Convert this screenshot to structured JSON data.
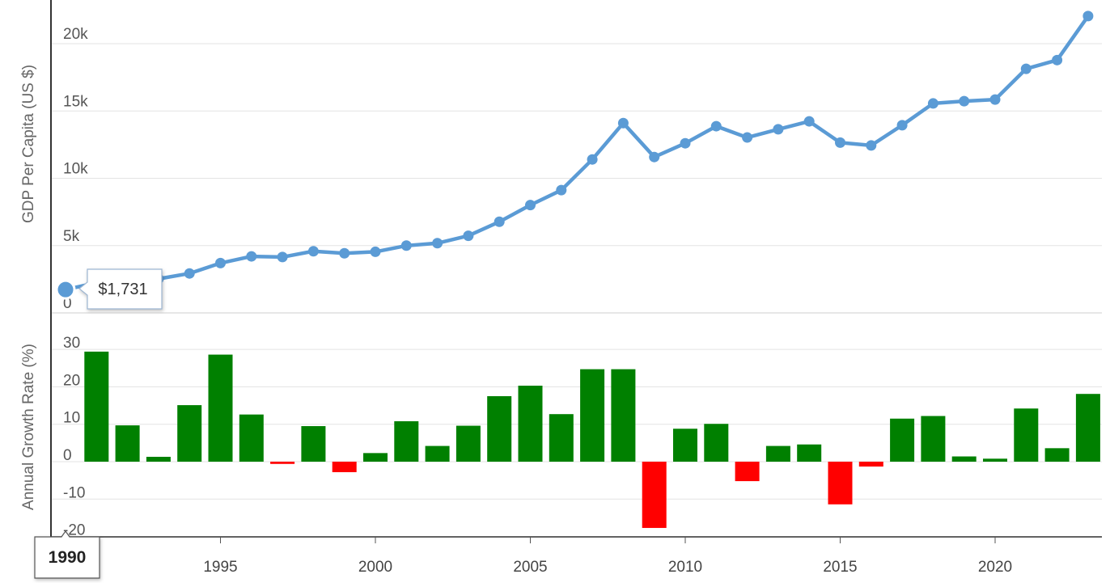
{
  "chart_data": [
    {
      "type": "line",
      "ylabel": "GDP Per Capita (US $)",
      "y_tick_labels": [
        "0",
        "5k",
        "10k",
        "15k",
        "20k"
      ],
      "y_ticks": [
        0,
        5000,
        10000,
        15000,
        20000
      ],
      "ylim": [
        0,
        23000
      ],
      "xlim": [
        1990,
        2023
      ],
      "x_tick_labels": [
        "1995",
        "2000",
        "2005",
        "2010",
        "2015",
        "2020"
      ],
      "x_ticks": [
        1995,
        2000,
        2005,
        2010,
        2015,
        2020
      ],
      "grid": true,
      "series": [
        {
          "color": "#5b9bd5",
          "x": [
            1990,
            1991,
            1992,
            1993,
            1994,
            1995,
            1996,
            1997,
            1998,
            1999,
            2000,
            2001,
            2002,
            2003,
            2004,
            2005,
            2006,
            2007,
            2008,
            2009,
            2010,
            2011,
            2012,
            2013,
            2014,
            2015,
            2016,
            2017,
            2018,
            2019,
            2020,
            2021,
            2022,
            2023
          ],
          "values": [
            1731,
            2240,
            2450,
            2530,
            2930,
            3700,
            4200,
            4150,
            4580,
            4430,
            4540,
            5000,
            5180,
            5730,
            6770,
            8010,
            9120,
            11400,
            14100,
            11580,
            12600,
            13870,
            13030,
            13640,
            14230,
            12650,
            12440,
            13940,
            15560,
            15730,
            15850,
            18130,
            18780,
            22050
          ]
        }
      ],
      "tooltip": {
        "year": "1990",
        "value_label": "$1,731"
      }
    },
    {
      "type": "bar",
      "ylabel": "Annual Growth Rate (%)",
      "y_tick_labels": [
        "30",
        "20",
        "10",
        "0",
        "-10",
        "-20"
      ],
      "y_ticks": [
        30,
        20,
        10,
        0,
        -10,
        -20
      ],
      "ylim": [
        -20,
        33
      ],
      "grid": true,
      "colors": {
        "positive": "#008000",
        "negative": "#ff0000"
      },
      "x": [
        1991,
        1992,
        1993,
        1994,
        1995,
        1996,
        1997,
        1998,
        1999,
        2000,
        2001,
        2002,
        2003,
        2004,
        2005,
        2006,
        2007,
        2008,
        2009,
        2010,
        2011,
        2012,
        2013,
        2014,
        2015,
        2016,
        2017,
        2018,
        2019,
        2020,
        2021,
        2022,
        2023
      ],
      "values": [
        29.4,
        9.7,
        1.3,
        15.1,
        28.6,
        12.6,
        -0.6,
        9.5,
        -2.8,
        2.3,
        10.8,
        4.2,
        9.6,
        17.5,
        20.3,
        12.7,
        24.7,
        24.7,
        -17.7,
        8.8,
        10.1,
        -5.2,
        4.2,
        4.6,
        -11.4,
        -1.3,
        11.5,
        12.2,
        1.4,
        0.8,
        14.2,
        3.6,
        18.1
      ]
    }
  ]
}
